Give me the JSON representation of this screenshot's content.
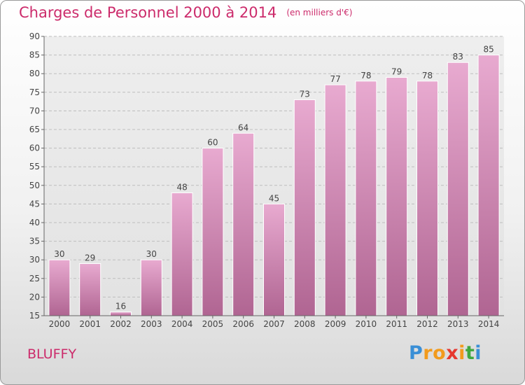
{
  "chart_data": {
    "type": "bar",
    "title": "Charges de Personnel 2000 à 2014",
    "subtitle": "(en milliers d'€)",
    "categories": [
      "2000",
      "2001",
      "2002",
      "2003",
      "2004",
      "2005",
      "2006",
      "2007",
      "2008",
      "2009",
      "2010",
      "2011",
      "2012",
      "2013",
      "2014"
    ],
    "values": [
      30,
      29,
      16,
      30,
      48,
      60,
      64,
      45,
      73,
      77,
      78,
      79,
      78,
      83,
      85
    ],
    "ylim": [
      15,
      90
    ],
    "yticks": [
      15,
      20,
      25,
      30,
      35,
      40,
      45,
      50,
      55,
      60,
      65,
      70,
      75,
      80,
      85,
      90
    ],
    "grid": true,
    "bar_color": "#d98fb6",
    "data_labels": true
  },
  "commune_name": "BLUFFY",
  "logo": {
    "letters": [
      {
        "ch": "P",
        "color": "#3a8fd6"
      },
      {
        "ch": "r",
        "color": "#f29b1d"
      },
      {
        "ch": "o",
        "color": "#f29b1d"
      },
      {
        "ch": "x",
        "color": "#e6372e"
      },
      {
        "ch": "i",
        "color": "#f29b1d"
      },
      {
        "ch": "t",
        "color": "#3fa83f"
      },
      {
        "ch": "i",
        "color": "#3a8fd6"
      }
    ]
  }
}
